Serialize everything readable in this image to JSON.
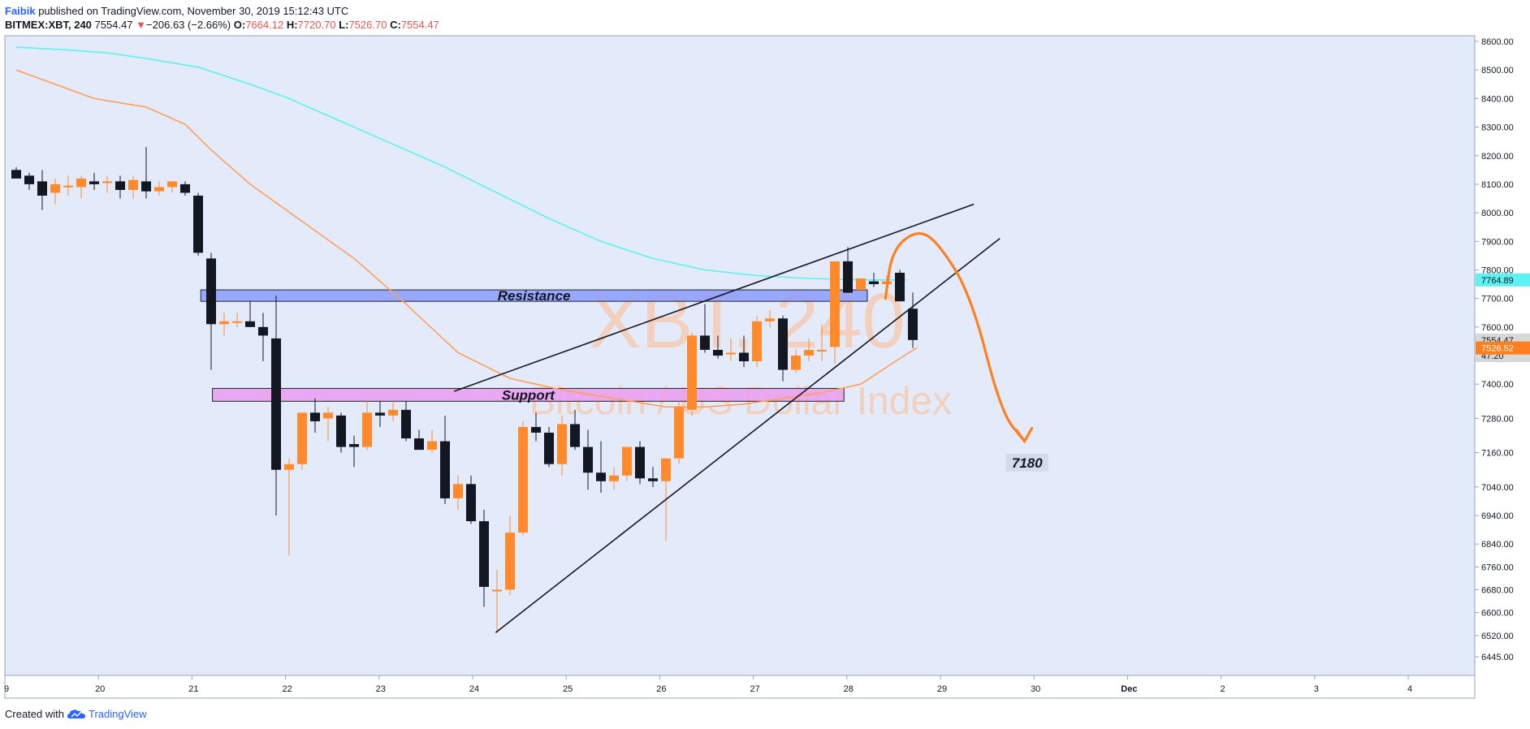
{
  "header": {
    "author": "Faibik",
    "published": "published on TradingView.com, November 30, 2019 15:12:43 UTC",
    "symbol": "BITMEX:XBT, 240",
    "last": "7554.47",
    "change_arrow": "▼",
    "change": "−206.63 (−2.66%)",
    "o_label": "O:",
    "o_val": "7664.12",
    "h_label": "H:",
    "h_val": "7720.70",
    "l_label": "L:",
    "l_val": "7526.70",
    "c_label": "C:",
    "c_val": "7554.47"
  },
  "footer": {
    "created": "Created with",
    "brand": "TradingView",
    "logo_icon": "tradingview-cloud-icon"
  },
  "colors": {
    "background": "#e3ebfb",
    "bull": "#ff8a2b",
    "bear": "#131722",
    "ma_cyan": "#5cf2f2",
    "ma_orange": "#ff9f55",
    "resistance": "#8c9cff",
    "support": "#ea9ef0",
    "projection": "#ff7f1f"
  },
  "watermark": {
    "title": "XBT, 240",
    "subtitle": "Bitcoin / US Dollar Index"
  },
  "chart_data": {
    "type": "candlestick",
    "interval": "240",
    "ylim": [
      6380,
      8620
    ],
    "y_ticks": [
      "8600.00",
      "8500.00",
      "8400.00",
      "8300.00",
      "8200.00",
      "8100.00",
      "8000.00",
      "7900.00",
      "7800.00",
      "7700.00",
      "7600.00",
      "7400.00",
      "7280.00",
      "7160.00",
      "7040.00",
      "6940.00",
      "6840.00",
      "6760.00",
      "6680.00",
      "6600.00",
      "6520.00",
      "6445.00"
    ],
    "x_ticks": [
      "9",
      "20",
      "21",
      "22",
      "23",
      "24",
      "25",
      "26",
      "27",
      "28",
      "29",
      "30",
      "Dec",
      "2",
      "3",
      "4"
    ],
    "price_tags": [
      {
        "value": 7764.89,
        "label": "7764.89",
        "color": "#5cf2f2",
        "text_color": "#131722"
      },
      {
        "value": 7554.47,
        "label": "7554.47",
        "color": "#d8d8d8",
        "text_color": "#131722"
      },
      {
        "value": 7500,
        "label": "47:20",
        "color": "#d8d8d8",
        "text_color": "#131722"
      },
      {
        "value": 7526.52,
        "label": "7526.52",
        "color": "#ff7f1f",
        "text_color": "#ffffff"
      }
    ],
    "candles": [
      {
        "o": 8150,
        "h": 8160,
        "l": 8120,
        "c": 8120
      },
      {
        "o": 8130,
        "h": 8140,
        "l": 8080,
        "c": 8100
      },
      {
        "o": 8110,
        "h": 8150,
        "l": 8010,
        "c": 8060
      },
      {
        "o": 8070,
        "h": 8120,
        "l": 8030,
        "c": 8100
      },
      {
        "o": 8090,
        "h": 8130,
        "l": 8060,
        "c": 8095
      },
      {
        "o": 8090,
        "h": 8130,
        "l": 8050,
        "c": 8120
      },
      {
        "o": 8110,
        "h": 8140,
        "l": 8080,
        "c": 8100
      },
      {
        "o": 8110,
        "h": 8130,
        "l": 8070,
        "c": 8110
      },
      {
        "o": 8110,
        "h": 8130,
        "l": 8050,
        "c": 8080
      },
      {
        "o": 8080,
        "h": 8130,
        "l": 8050,
        "c": 8115
      },
      {
        "o": 8110,
        "h": 8230,
        "l": 8050,
        "c": 8075
      },
      {
        "o": 8075,
        "h": 8110,
        "l": 8060,
        "c": 8090
      },
      {
        "o": 8090,
        "h": 8110,
        "l": 8070,
        "c": 8110
      },
      {
        "o": 8100,
        "h": 8110,
        "l": 8060,
        "c": 8070
      },
      {
        "o": 8060,
        "h": 8070,
        "l": 7850,
        "c": 7860
      },
      {
        "o": 7840,
        "h": 7860,
        "l": 7450,
        "c": 7610
      },
      {
        "o": 7610,
        "h": 7650,
        "l": 7570,
        "c": 7620
      },
      {
        "o": 7620,
        "h": 7650,
        "l": 7600,
        "c": 7620
      },
      {
        "o": 7620,
        "h": 7690,
        "l": 7600,
        "c": 7600
      },
      {
        "o": 7600,
        "h": 7650,
        "l": 7480,
        "c": 7570
      },
      {
        "o": 7560,
        "h": 7710,
        "l": 6940,
        "c": 7100
      },
      {
        "o": 7100,
        "h": 7140,
        "l": 6800,
        "c": 7120
      },
      {
        "o": 7120,
        "h": 7300,
        "l": 7100,
        "c": 7300
      },
      {
        "o": 7300,
        "h": 7350,
        "l": 7230,
        "c": 7270
      },
      {
        "o": 7280,
        "h": 7320,
        "l": 7200,
        "c": 7300
      },
      {
        "o": 7290,
        "h": 7300,
        "l": 7160,
        "c": 7180
      },
      {
        "o": 7190,
        "h": 7220,
        "l": 7110,
        "c": 7180
      },
      {
        "o": 7180,
        "h": 7340,
        "l": 7170,
        "c": 7300
      },
      {
        "o": 7300,
        "h": 7340,
        "l": 7250,
        "c": 7290
      },
      {
        "o": 7290,
        "h": 7340,
        "l": 7270,
        "c": 7310
      },
      {
        "o": 7310,
        "h": 7340,
        "l": 7200,
        "c": 7210
      },
      {
        "o": 7210,
        "h": 7240,
        "l": 7170,
        "c": 7170
      },
      {
        "o": 7170,
        "h": 7240,
        "l": 7160,
        "c": 7200
      },
      {
        "o": 7200,
        "h": 7290,
        "l": 6980,
        "c": 7000
      },
      {
        "o": 7000,
        "h": 7080,
        "l": 6960,
        "c": 7050
      },
      {
        "o": 7050,
        "h": 7080,
        "l": 6910,
        "c": 6920
      },
      {
        "o": 6920,
        "h": 6960,
        "l": 6620,
        "c": 6690
      },
      {
        "o": 6680,
        "h": 6750,
        "l": 6530,
        "c": 6680
      },
      {
        "o": 6680,
        "h": 6940,
        "l": 6660,
        "c": 6880
      },
      {
        "o": 6880,
        "h": 7270,
        "l": 6870,
        "c": 7250
      },
      {
        "o": 7250,
        "h": 7300,
        "l": 7200,
        "c": 7230
      },
      {
        "o": 7230,
        "h": 7250,
        "l": 7110,
        "c": 7120
      },
      {
        "o": 7120,
        "h": 7290,
        "l": 7080,
        "c": 7260
      },
      {
        "o": 7260,
        "h": 7310,
        "l": 7170,
        "c": 7180
      },
      {
        "o": 7180,
        "h": 7240,
        "l": 7030,
        "c": 7090
      },
      {
        "o": 7090,
        "h": 7200,
        "l": 7020,
        "c": 7060
      },
      {
        "o": 7060,
        "h": 7110,
        "l": 7030,
        "c": 7080
      },
      {
        "o": 7080,
        "h": 7180,
        "l": 7060,
        "c": 7180
      },
      {
        "o": 7180,
        "h": 7200,
        "l": 7050,
        "c": 7070
      },
      {
        "o": 7070,
        "h": 7110,
        "l": 7040,
        "c": 7060
      },
      {
        "o": 7060,
        "h": 7140,
        "l": 6850,
        "c": 7140
      },
      {
        "o": 7140,
        "h": 7340,
        "l": 7120,
        "c": 7320
      },
      {
        "o": 7310,
        "h": 7580,
        "l": 7290,
        "c": 7570
      },
      {
        "o": 7570,
        "h": 7680,
        "l": 7510,
        "c": 7520
      },
      {
        "o": 7520,
        "h": 7570,
        "l": 7490,
        "c": 7500
      },
      {
        "o": 7510,
        "h": 7560,
        "l": 7480,
        "c": 7510
      },
      {
        "o": 7510,
        "h": 7570,
        "l": 7460,
        "c": 7480
      },
      {
        "o": 7480,
        "h": 7640,
        "l": 7460,
        "c": 7620
      },
      {
        "o": 7620,
        "h": 7660,
        "l": 7600,
        "c": 7630
      },
      {
        "o": 7630,
        "h": 7640,
        "l": 7410,
        "c": 7450
      },
      {
        "o": 7450,
        "h": 7520,
        "l": 7440,
        "c": 7500
      },
      {
        "o": 7500,
        "h": 7560,
        "l": 7480,
        "c": 7520
      },
      {
        "o": 7520,
        "h": 7610,
        "l": 7480,
        "c": 7520
      },
      {
        "o": 7530,
        "h": 7830,
        "l": 7470,
        "c": 7830
      },
      {
        "o": 7830,
        "h": 7880,
        "l": 7720,
        "c": 7720
      },
      {
        "o": 7730,
        "h": 7770,
        "l": 7720,
        "c": 7770
      },
      {
        "o": 7760,
        "h": 7790,
        "l": 7740,
        "c": 7750
      },
      {
        "o": 7750,
        "h": 7780,
        "l": 7710,
        "c": 7760
      },
      {
        "o": 7790,
        "h": 7800,
        "l": 7690,
        "c": 7690
      },
      {
        "o": 7664.12,
        "h": 7720.7,
        "l": 7526.7,
        "c": 7554.47
      }
    ],
    "ma_cyan": [
      [
        0,
        8580
      ],
      [
        4,
        8570
      ],
      [
        7,
        8560
      ],
      [
        10,
        8540
      ],
      [
        14,
        8510
      ],
      [
        18,
        8450
      ],
      [
        21,
        8400
      ],
      [
        25,
        8320
      ],
      [
        29,
        8240
      ],
      [
        33,
        8160
      ],
      [
        37,
        8070
      ],
      [
        41,
        7980
      ],
      [
        45,
        7900
      ],
      [
        49,
        7840
      ],
      [
        53,
        7800
      ],
      [
        57,
        7780
      ],
      [
        61,
        7770
      ],
      [
        65,
        7765
      ],
      [
        68.5,
        7764.89
      ]
    ],
    "ma_orange": [
      [
        0,
        8500
      ],
      [
        3,
        8450
      ],
      [
        6,
        8400
      ],
      [
        10,
        8370
      ],
      [
        13,
        8310
      ],
      [
        15,
        8220
      ],
      [
        18,
        8100
      ],
      [
        22,
        7970
      ],
      [
        26,
        7840
      ],
      [
        30,
        7680
      ],
      [
        34,
        7510
      ],
      [
        38,
        7420
      ],
      [
        42,
        7380
      ],
      [
        46,
        7350
      ],
      [
        50,
        7320
      ],
      [
        53,
        7320
      ],
      [
        56,
        7330
      ],
      [
        59,
        7350
      ],
      [
        62,
        7370
      ],
      [
        65,
        7400
      ],
      [
        68,
        7490
      ],
      [
        69.3,
        7526.52
      ]
    ],
    "annotations": {
      "resistance": {
        "label": "Resistance",
        "from": 14.2,
        "to": 65.5,
        "low": 7690,
        "high": 7730
      },
      "support": {
        "label": "Support",
        "from": 15.1,
        "to": 63.7,
        "low": 7340,
        "high": 7385
      },
      "upper_trendline": [
        [
          33.7,
          7375
        ],
        [
          73.7,
          8030
        ]
      ],
      "lower_trendline": [
        [
          36.9,
          6530
        ],
        [
          75.7,
          7910
        ]
      ],
      "projection": [
        [
          66.9,
          7700
        ],
        [
          67.4,
          7870
        ],
        [
          69.3,
          7940
        ],
        [
          70.9,
          7900
        ],
        [
          73.5,
          7710
        ],
        [
          75.8,
          7300
        ],
        [
          77.6,
          7200
        ]
      ],
      "target_label": {
        "text": "7180",
        "x": 77.8,
        "y": 7125
      }
    }
  }
}
